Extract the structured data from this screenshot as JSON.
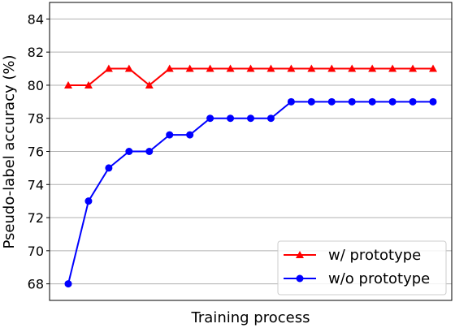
{
  "chart_data": {
    "type": "line",
    "title": "",
    "xlabel": "Training process",
    "ylabel": "Pseudo-label accuracy (%)",
    "ylim": [
      67,
      85
    ],
    "yticks": [
      "68",
      "70",
      "72",
      "74",
      "76",
      "78",
      "80",
      "82",
      "84"
    ],
    "grid": "horizontal",
    "legend_position": "bottom-right",
    "x": [
      1,
      2,
      3,
      4,
      5,
      6,
      7,
      8,
      9,
      10,
      11,
      12,
      13,
      14,
      15,
      16,
      17,
      18,
      19
    ],
    "series": [
      {
        "name": "w/ prototype",
        "color": "#ff0000",
        "marker": "triangle",
        "values": [
          80,
          80,
          81,
          81,
          80,
          81,
          81,
          81,
          81,
          81,
          81,
          81,
          81,
          81,
          81,
          81,
          81,
          81,
          81
        ]
      },
      {
        "name": "w/o prototype",
        "color": "#0000ff",
        "marker": "circle",
        "values": [
          68,
          73,
          75,
          76,
          76,
          77,
          77,
          78,
          78,
          78,
          78,
          79,
          79,
          79,
          79,
          79,
          79,
          79,
          79
        ]
      }
    ]
  }
}
